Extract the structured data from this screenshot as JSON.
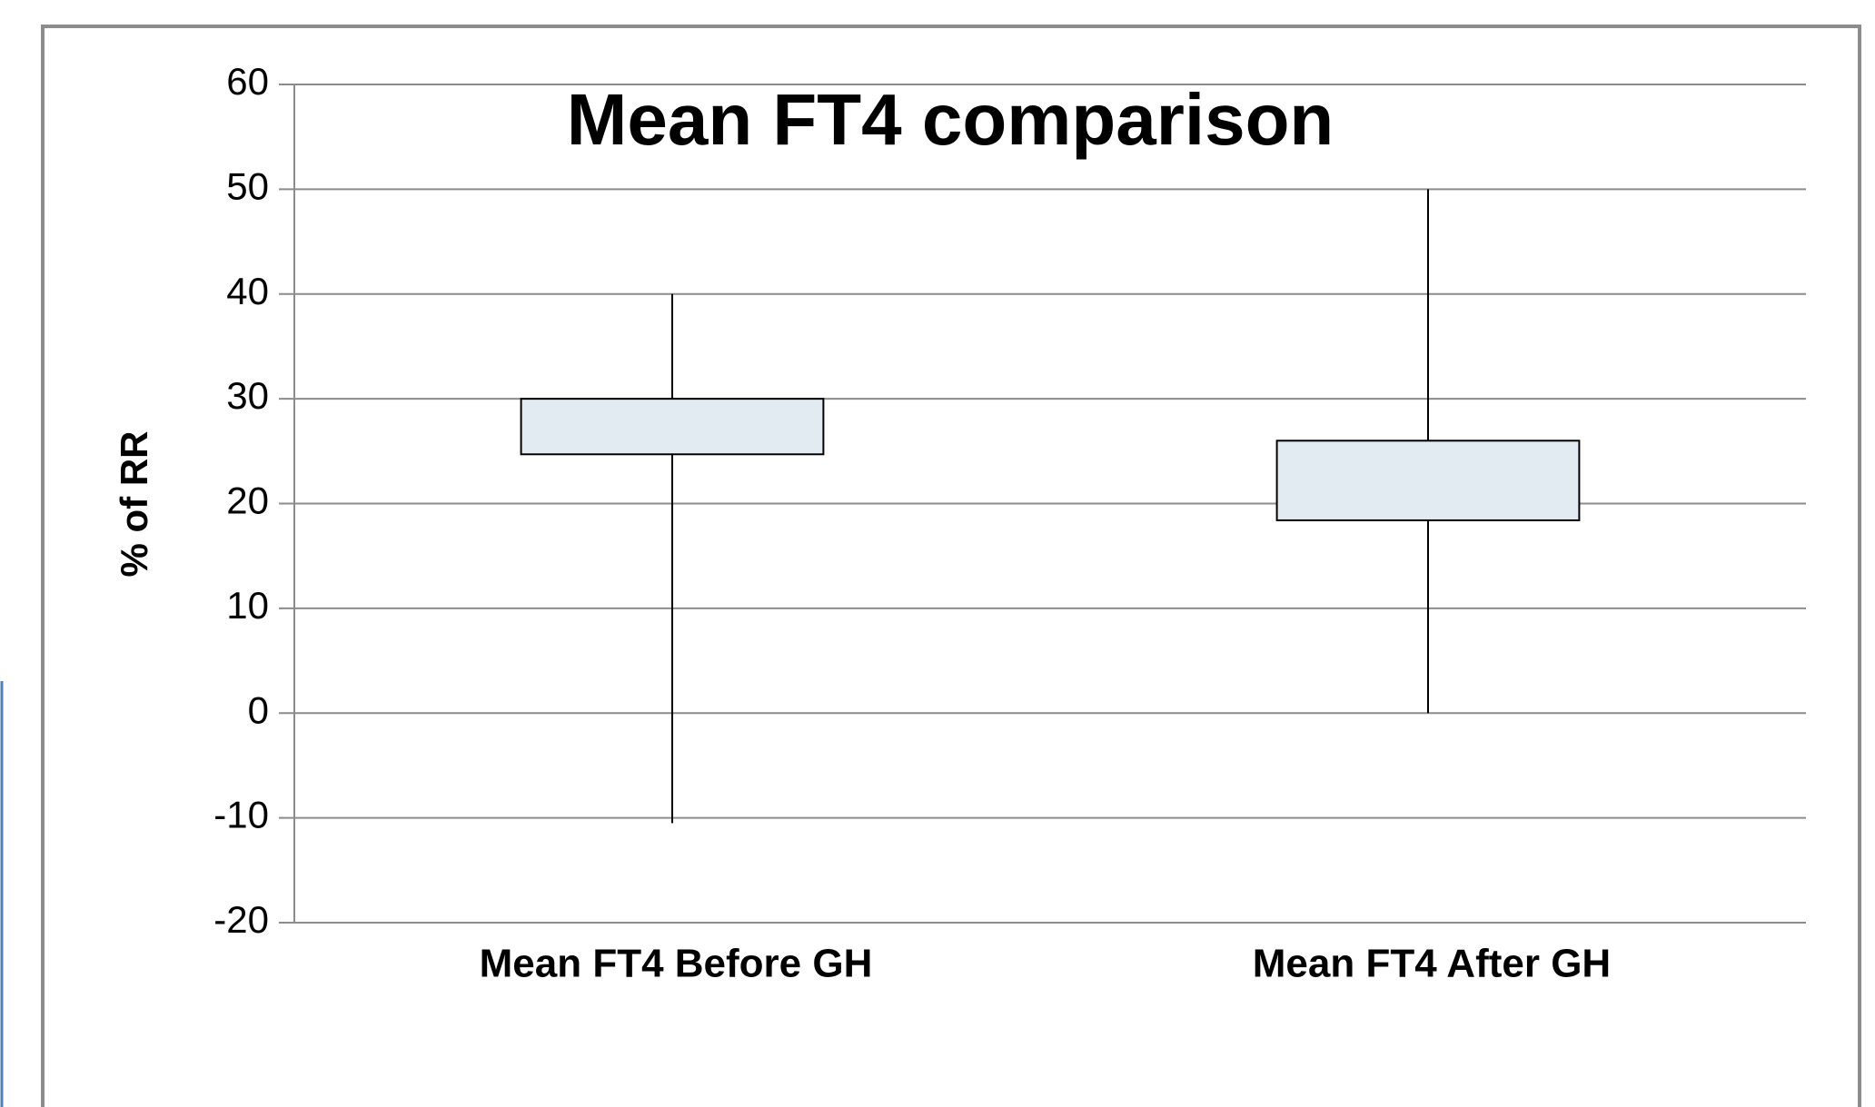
{
  "chart_data": {
    "type": "box",
    "title": "Mean FT4 comparison",
    "ylabel": "% of RR",
    "categories": [
      "Mean FT4 Before GH",
      "Mean FT4 After GH"
    ],
    "min": [
      -10.5,
      0
    ],
    "q1": [
      24.7,
      18.4
    ],
    "q3": [
      30,
      26
    ],
    "max": [
      40,
      50
    ],
    "color": "#e1ebf1",
    "ylim": [
      -20,
      60
    ],
    "yticks": [
      -20,
      -10,
      0,
      10,
      20,
      30,
      40,
      50,
      60
    ],
    "grid": true
  }
}
